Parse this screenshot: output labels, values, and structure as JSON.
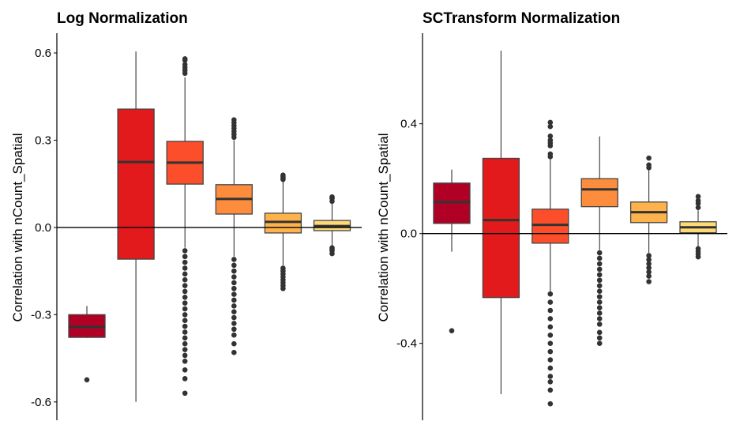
{
  "chart_data": [
    {
      "type": "box",
      "title": "Log Normalization",
      "ylabel": "Correlation with nCount_Spatial",
      "xlabel": "",
      "ylim": [
        -0.663,
        0.668
      ],
      "yticks": [
        -0.6,
        -0.3,
        0.0,
        0.3,
        0.6
      ],
      "ytick_labels": [
        "-0.6",
        "-0.3",
        "0.0",
        "0.3",
        "0.6"
      ],
      "reference_line": 0.0,
      "grid": false,
      "boxes": [
        {
          "color": "#B10026",
          "q1": -0.378,
          "median": -0.342,
          "q3": -0.3,
          "whisker_low": -0.38,
          "whisker_high": -0.27,
          "outliers": [
            -0.524
          ]
        },
        {
          "color": "#E31A1C",
          "q1": -0.109,
          "median": 0.225,
          "q3": 0.407,
          "whisker_low": -0.6,
          "whisker_high": 0.605,
          "outliers": []
        },
        {
          "color": "#FC4E2A",
          "q1": 0.149,
          "median": 0.223,
          "q3": 0.296,
          "whisker_low": -0.07,
          "whisker_high": 0.516,
          "outliers": [
            0.53,
            0.54,
            0.55,
            0.56,
            0.575,
            0.58,
            -0.08,
            -0.1,
            -0.12,
            -0.14,
            -0.16,
            -0.18,
            -0.2,
            -0.22,
            -0.24,
            -0.26,
            -0.28,
            -0.3,
            -0.32,
            -0.34,
            -0.36,
            -0.38,
            -0.4,
            -0.42,
            -0.44,
            -0.46,
            -0.49,
            -0.52,
            -0.57
          ]
        },
        {
          "color": "#FD8D3C",
          "q1": 0.046,
          "median": 0.098,
          "q3": 0.147,
          "whisker_low": -0.1,
          "whisker_high": 0.3,
          "outliers": [
            0.31,
            0.32,
            0.33,
            0.34,
            0.35,
            0.36,
            0.37,
            -0.11,
            -0.13,
            -0.15,
            -0.17,
            -0.19,
            -0.21,
            -0.23,
            -0.25,
            -0.27,
            -0.29,
            -0.31,
            -0.33,
            -0.35,
            -0.37,
            -0.4,
            -0.43
          ]
        },
        {
          "color": "#FEB24C",
          "q1": -0.019,
          "median": 0.019,
          "q3": 0.049,
          "whisker_low": -0.13,
          "whisker_high": 0.16,
          "outliers": [
            0.165,
            0.17,
            0.175,
            0.18,
            -0.14,
            -0.15,
            -0.16,
            -0.17,
            -0.18,
            -0.19,
            -0.2,
            -0.21
          ]
        },
        {
          "color": "#FED976",
          "q1": -0.011,
          "median": 0.005,
          "q3": 0.024,
          "whisker_low": -0.065,
          "whisker_high": 0.085,
          "outliers": [
            0.09,
            0.1,
            0.105,
            -0.07,
            -0.075,
            -0.08,
            -0.09
          ]
        }
      ]
    },
    {
      "type": "box",
      "title": "SCTransform Normalization",
      "ylabel": "Correlation with nCount_Spatial",
      "xlabel": "",
      "ylim": [
        -0.68,
        0.73
      ],
      "yticks": [
        -0.4,
        0.0,
        0.4
      ],
      "ytick_labels": [
        "-0.4",
        "0.0",
        "0.4"
      ],
      "reference_line": 0.0,
      "grid": false,
      "boxes": [
        {
          "color": "#B10026",
          "q1": 0.037,
          "median": 0.115,
          "q3": 0.184,
          "whisker_low": -0.066,
          "whisker_high": 0.233,
          "outliers": [
            -0.354
          ]
        },
        {
          "color": "#E31A1C",
          "q1": -0.233,
          "median": 0.049,
          "q3": 0.274,
          "whisker_low": -0.585,
          "whisker_high": 0.666,
          "outliers": []
        },
        {
          "color": "#FC4E2A",
          "q1": -0.035,
          "median": 0.032,
          "q3": 0.089,
          "whisker_low": -0.215,
          "whisker_high": 0.27,
          "outliers": [
            0.28,
            0.29,
            0.32,
            0.33,
            0.34,
            0.355,
            0.39,
            0.405,
            -0.22,
            -0.25,
            -0.28,
            -0.31,
            -0.34,
            -0.37,
            -0.4,
            -0.43,
            -0.46,
            -0.49,
            -0.52,
            -0.54,
            -0.57,
            -0.62
          ]
        },
        {
          "color": "#FD8D3C",
          "q1": 0.098,
          "median": 0.161,
          "q3": 0.2,
          "whisker_low": -0.06,
          "whisker_high": 0.354,
          "outliers": [
            -0.07,
            -0.09,
            -0.11,
            -0.13,
            -0.15,
            -0.17,
            -0.19,
            -0.21,
            -0.23,
            -0.25,
            -0.27,
            -0.29,
            -0.31,
            -0.33,
            -0.36,
            -0.38,
            -0.4
          ]
        },
        {
          "color": "#FEB24C",
          "q1": 0.04,
          "median": 0.078,
          "q3": 0.115,
          "whisker_low": -0.07,
          "whisker_high": 0.233,
          "outliers": [
            0.24,
            0.25,
            0.275,
            -0.08,
            -0.095,
            -0.11,
            -0.125,
            -0.14,
            -0.155,
            -0.175
          ]
        },
        {
          "color": "#FED976",
          "q1": 0.003,
          "median": 0.023,
          "q3": 0.043,
          "whisker_low": -0.05,
          "whisker_high": 0.085,
          "outliers": [
            0.095,
            0.11,
            0.12,
            0.135,
            -0.055,
            -0.065,
            -0.075,
            -0.085
          ]
        }
      ]
    }
  ]
}
